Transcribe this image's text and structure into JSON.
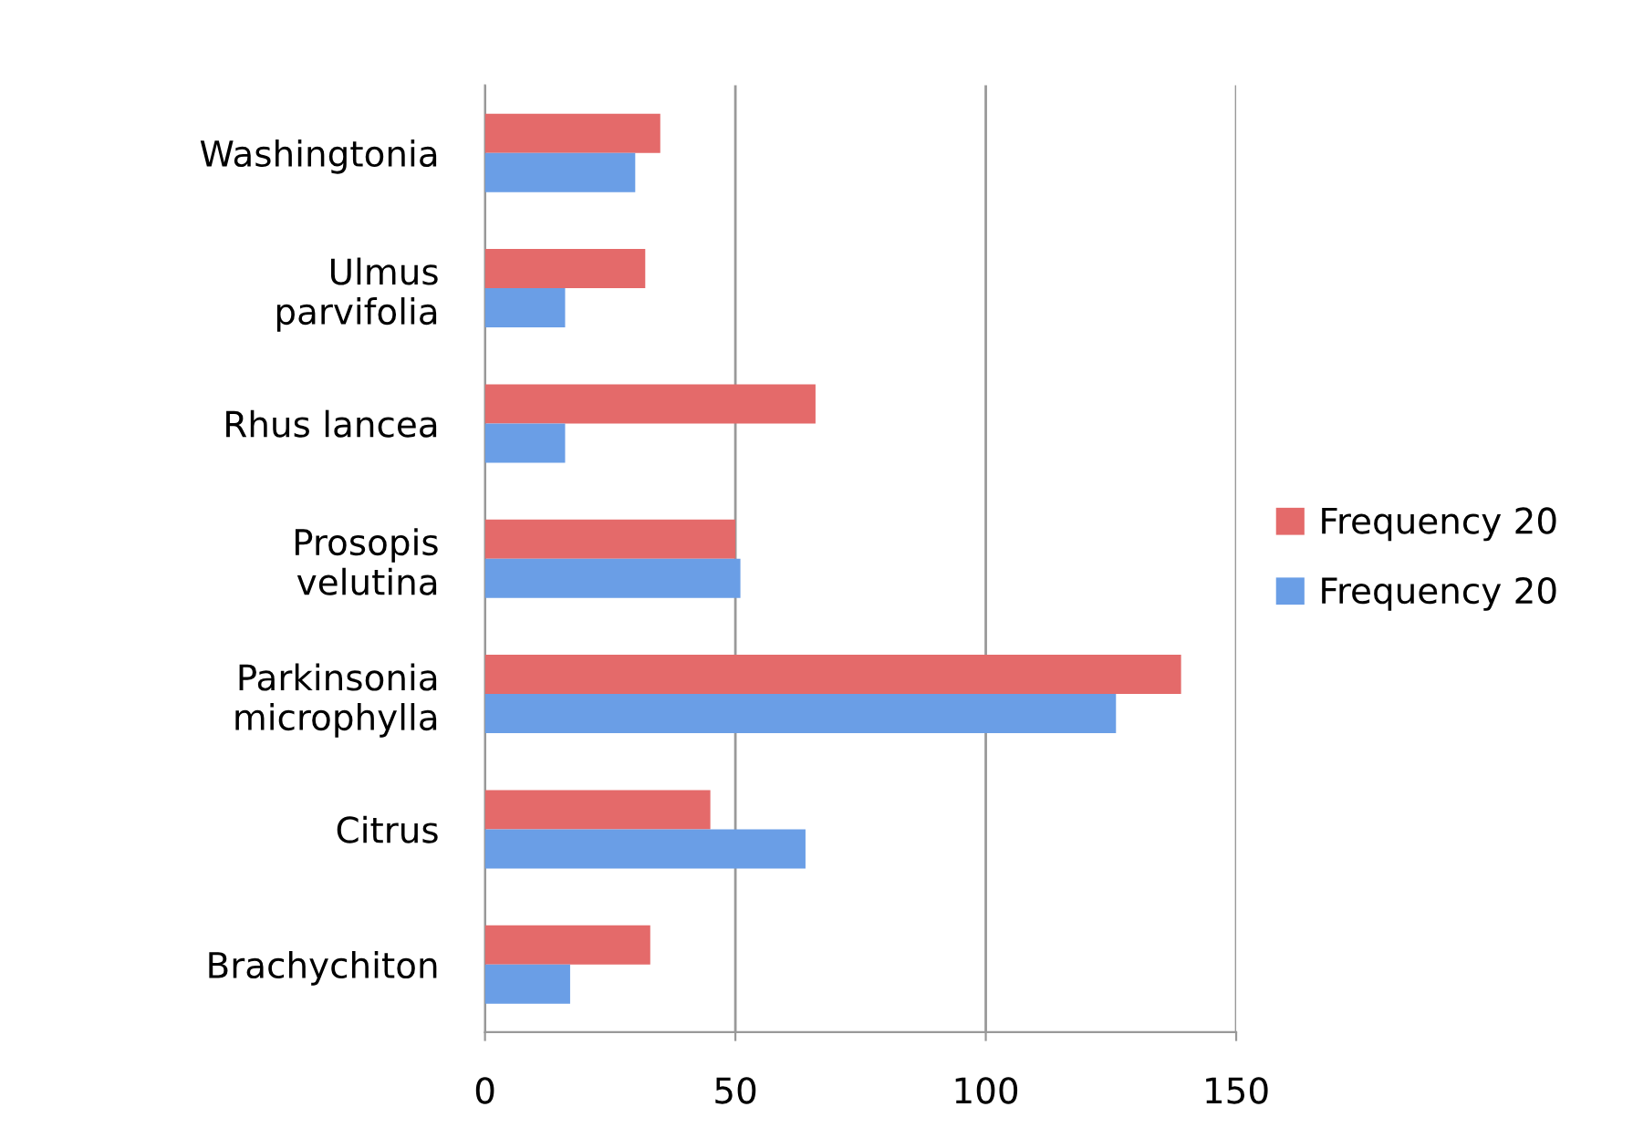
{
  "chart_data": {
    "type": "bar",
    "orientation": "horizontal",
    "categories": [
      "Washingtonia",
      "Ulmus\nparvifolia",
      "Rhus lancea",
      "Prosopis\nvelutina",
      "Parkinsonia\nmicrophylla",
      "Citrus",
      "Brachychiton"
    ],
    "series": [
      {
        "name": "Frequency 20",
        "color": "#e46a6a",
        "values": [
          35,
          32,
          66,
          50,
          139,
          45,
          33
        ]
      },
      {
        "name": "Frequency 20",
        "color": "#6a9ee6",
        "values": [
          30,
          16,
          16,
          51,
          126,
          64,
          17
        ]
      }
    ],
    "xlim": [
      0,
      150
    ],
    "xticks": [
      0,
      50,
      100,
      150
    ],
    "grid": "x",
    "legend": "right"
  }
}
